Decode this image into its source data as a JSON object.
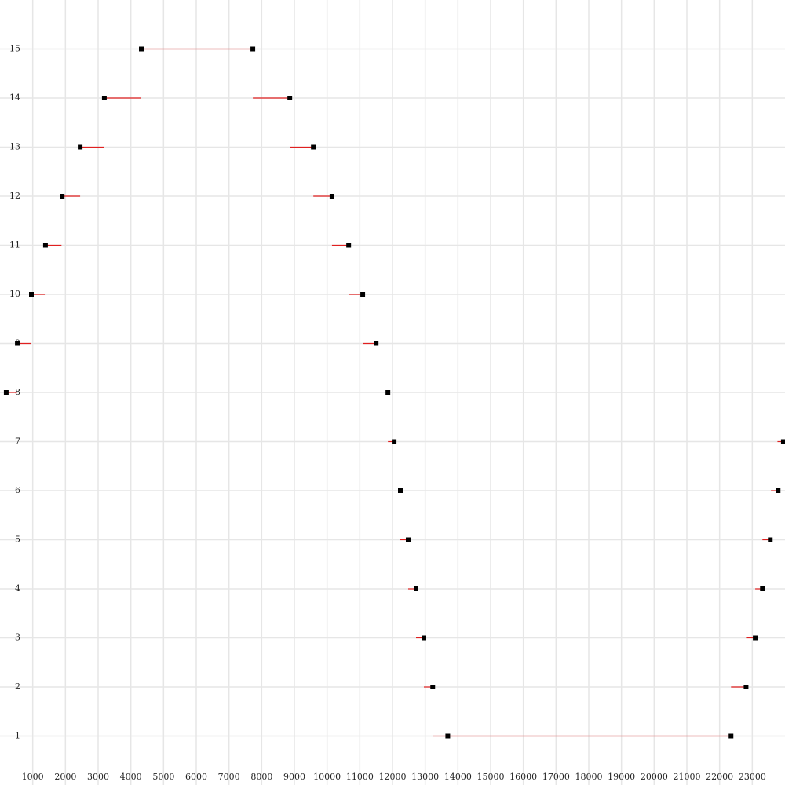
{
  "chart_data": {
    "type": "dot",
    "xlim": [
      0,
      24000
    ],
    "xticks": [
      1000,
      2000,
      3000,
      4000,
      5000,
      6000,
      7000,
      8000,
      9000,
      10000,
      11000,
      12000,
      13000,
      14000,
      15000,
      16000,
      17000,
      18000,
      19000,
      20000,
      21000,
      22000,
      23000
    ],
    "ylim": [
      0,
      16
    ],
    "yticks": [
      1,
      2,
      3,
      4,
      5,
      6,
      7,
      8,
      9,
      10,
      11,
      12,
      13,
      14,
      15
    ],
    "grid": true,
    "point_color": "#000000",
    "segment_color": "#e02020",
    "rows": [
      {
        "y": 15,
        "points": [
          4320,
          7730
        ],
        "segments": [
          [
            4320,
            7730
          ]
        ]
      },
      {
        "y": 14,
        "points": [
          3190,
          8860
        ],
        "segments": [
          [
            3190,
            4300
          ],
          [
            7730,
            8860
          ]
        ]
      },
      {
        "y": 13,
        "points": [
          2450,
          9580
        ],
        "segments": [
          [
            2450,
            3170
          ],
          [
            8860,
            9580
          ]
        ]
      },
      {
        "y": 12,
        "points": [
          1900,
          10150
        ],
        "segments": [
          [
            1900,
            2450
          ],
          [
            9580,
            10150
          ]
        ]
      },
      {
        "y": 11,
        "points": [
          1390,
          10660
        ],
        "segments": [
          [
            1390,
            1880
          ],
          [
            10150,
            10660
          ]
        ]
      },
      {
        "y": 10,
        "points": [
          960,
          11090
        ],
        "segments": [
          [
            960,
            1370
          ],
          [
            10660,
            11090
          ]
        ]
      },
      {
        "y": 9,
        "points": [
          530,
          11500
        ],
        "segments": [
          [
            530,
            940
          ],
          [
            11090,
            11500
          ]
        ]
      },
      {
        "y": 8,
        "points": [
          190,
          11860
        ],
        "segments": [
          [
            190,
            520
          ]
        ]
      },
      {
        "y": 7,
        "points": [
          12050,
          23950
        ],
        "segments": [
          [
            11860,
            12050
          ],
          [
            23770,
            23950
          ]
        ]
      },
      {
        "y": 6,
        "points": [
          12240,
          23790
        ],
        "segments": [
          [
            23570,
            23790
          ]
        ]
      },
      {
        "y": 5,
        "points": [
          12480,
          23550
        ],
        "segments": [
          [
            12240,
            12480
          ],
          [
            23310,
            23550
          ]
        ]
      },
      {
        "y": 4,
        "points": [
          12720,
          23310
        ],
        "segments": [
          [
            12480,
            12720
          ],
          [
            23090,
            23310
          ]
        ]
      },
      {
        "y": 3,
        "points": [
          12960,
          23090
        ],
        "segments": [
          [
            12720,
            12960
          ],
          [
            22810,
            23090
          ]
        ]
      },
      {
        "y": 2,
        "points": [
          13230,
          22810
        ],
        "segments": [
          [
            12960,
            13230
          ],
          [
            22350,
            22810
          ]
        ]
      },
      {
        "y": 1,
        "points": [
          13690,
          22350
        ],
        "segments": [
          [
            13230,
            22350
          ]
        ]
      }
    ]
  }
}
